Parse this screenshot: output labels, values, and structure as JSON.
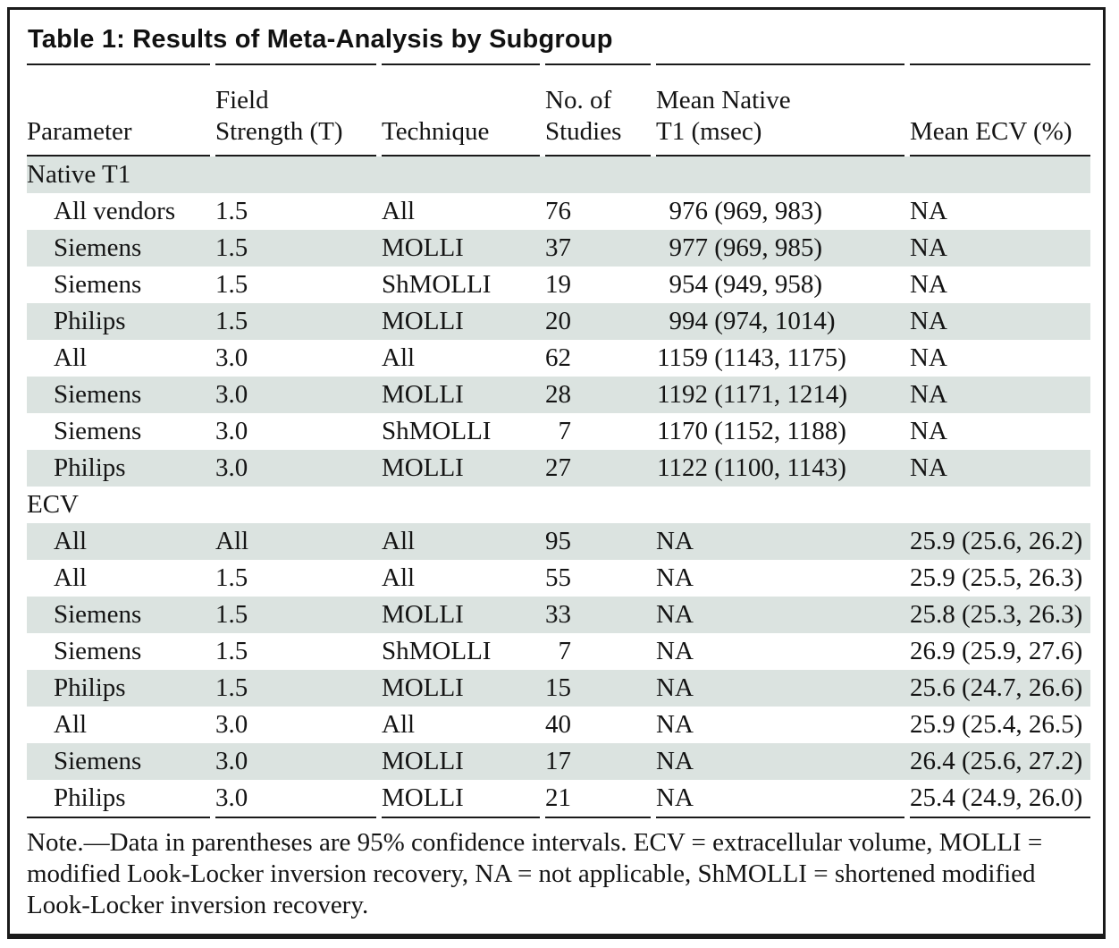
{
  "table": {
    "title": "Table 1: Results of Meta-Analysis by Subgroup",
    "headers": [
      "Parameter",
      "Field\nStrength (T)",
      "Technique",
      "No. of\nStudies",
      "Mean Native\nT1 (msec)",
      "Mean ECV (%)"
    ],
    "sections": [
      {
        "label": "Native T1",
        "rows": [
          {
            "parameter": "All vendors",
            "field_strength": "1.5",
            "technique": "All",
            "n_studies": "76",
            "t1": "976 (969, 983)",
            "ecv": "NA"
          },
          {
            "parameter": "Siemens",
            "field_strength": "1.5",
            "technique": "MOLLI",
            "n_studies": "37",
            "t1": "977 (969, 985)",
            "ecv": "NA"
          },
          {
            "parameter": "Siemens",
            "field_strength": "1.5",
            "technique": "ShMOLLI",
            "n_studies": "19",
            "t1": "954 (949, 958)",
            "ecv": "NA"
          },
          {
            "parameter": "Philips",
            "field_strength": "1.5",
            "technique": "MOLLI",
            "n_studies": "20",
            "t1": "994 (974, 1014)",
            "ecv": "NA"
          },
          {
            "parameter": "All",
            "field_strength": "3.0",
            "technique": "All",
            "n_studies": "62",
            "t1": "1159 (1143, 1175)",
            "ecv": "NA"
          },
          {
            "parameter": "Siemens",
            "field_strength": "3.0",
            "technique": "MOLLI",
            "n_studies": "28",
            "t1": "1192 (1171, 1214)",
            "ecv": "NA"
          },
          {
            "parameter": "Siemens",
            "field_strength": "3.0",
            "technique": "ShMOLLI",
            "n_studies": "7",
            "t1": "1170 (1152, 1188)",
            "ecv": "NA"
          },
          {
            "parameter": "Philips",
            "field_strength": "3.0",
            "technique": "MOLLI",
            "n_studies": "27",
            "t1": "1122 (1100, 1143)",
            "ecv": "NA"
          }
        ]
      },
      {
        "label": "ECV",
        "rows": [
          {
            "parameter": "All",
            "field_strength": "All",
            "technique": "All",
            "n_studies": "95",
            "t1": "NA",
            "ecv": "25.9 (25.6, 26.2)"
          },
          {
            "parameter": "All",
            "field_strength": "1.5",
            "technique": "All",
            "n_studies": "55",
            "t1": "NA",
            "ecv": "25.9 (25.5, 26.3)"
          },
          {
            "parameter": "Siemens",
            "field_strength": "1.5",
            "technique": "MOLLI",
            "n_studies": "33",
            "t1": "NA",
            "ecv": "25.8 (25.3, 26.3)"
          },
          {
            "parameter": "Siemens",
            "field_strength": "1.5",
            "technique": "ShMOLLI",
            "n_studies": "7",
            "t1": "NA",
            "ecv": "26.9 (25.9, 27.6)"
          },
          {
            "parameter": "Philips",
            "field_strength": "1.5",
            "technique": "MOLLI",
            "n_studies": "15",
            "t1": "NA",
            "ecv": "25.6 (24.7, 26.6)"
          },
          {
            "parameter": "All",
            "field_strength": "3.0",
            "technique": "All",
            "n_studies": "40",
            "t1": "NA",
            "ecv": "25.9 (25.4, 26.5)"
          },
          {
            "parameter": "Siemens",
            "field_strength": "3.0",
            "technique": "MOLLI",
            "n_studies": "17",
            "t1": "NA",
            "ecv": "26.4 (25.6, 27.2)"
          },
          {
            "parameter": "Philips",
            "field_strength": "3.0",
            "technique": "MOLLI",
            "n_studies": "21",
            "t1": "NA",
            "ecv": "25.4 (24.9, 26.0)"
          }
        ]
      }
    ],
    "note": "Note.—Data in parentheses are 95% confidence intervals. ECV = extracellular volume, MOLLI = modified Look-Locker inversion recovery, NA = not applicable, ShMOLLI = shortened modified Look-Locker inversion recovery.",
    "shade_color": "#dbe3e0",
    "rule_color": "#1a1a1a"
  }
}
